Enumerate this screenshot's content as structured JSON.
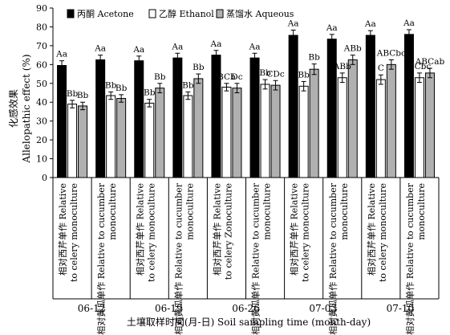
{
  "chart_data": {
    "type": "bar",
    "title": "",
    "ylabel_cn": "化感效果",
    "ylabel": "Allelopathic effect (%)",
    "xlabel": "土壤取样时间(月-日) Soil sampling time (month-day)",
    "ylim": [
      0,
      90
    ],
    "yticks": [
      0,
      10,
      20,
      30,
      40,
      50,
      60,
      70,
      80,
      90
    ],
    "legend_position": "top",
    "series": [
      {
        "name": "丙酮 Acetone",
        "color": "#000000",
        "values": [
          59.5,
          62.5,
          62,
          63.5,
          65,
          63.5,
          75.5,
          73.5,
          75.5,
          76
        ],
        "errors": [
          2.5,
          2.5,
          2.5,
          2.5,
          2.5,
          2.5,
          2.8,
          2.5,
          2.5,
          2.5
        ],
        "sig": [
          "Aa",
          "Aa",
          "Aa",
          "Aa",
          "Aa",
          "Aa",
          "Aa",
          "Aa",
          "Aa",
          "Aa"
        ]
      },
      {
        "name": "乙醇 Ethanol",
        "color": "#ffffff",
        "values": [
          39,
          43.5,
          39.5,
          43.5,
          48,
          49.5,
          48.5,
          53,
          52,
          53
        ],
        "errors": [
          2,
          2,
          2,
          2,
          2,
          2.5,
          2.5,
          2.5,
          2.5,
          2.5
        ],
        "sig": [
          "Bb",
          "Bb",
          "Bb",
          "Bb",
          "BCb",
          "Bb",
          "Bb",
          "ABb",
          "C",
          "BCbc"
        ]
      },
      {
        "name": "蒸馏水 Aqueous",
        "color": "#b0b0b0",
        "values": [
          38,
          42,
          47.5,
          52.5,
          47.5,
          49,
          57.5,
          62.5,
          60,
          55.5
        ],
        "errors": [
          2,
          2,
          2.5,
          2.5,
          2.5,
          2.5,
          2.8,
          2.5,
          2.5,
          2.5
        ],
        "sig": [
          "Bb",
          "Bb",
          "Bb",
          "Bb",
          "Dc",
          "CDc",
          "Bb",
          "ABb",
          "ABCbc",
          "ABCab"
        ]
      }
    ],
    "categories": [
      {
        "cn": "相对西芹单作",
        "en1": "Relative",
        "en2": "to celery monoculture"
      },
      {
        "cn": "相对黄瓜单作",
        "en1": "Relative to cucumber",
        "en2": "monoculture"
      },
      {
        "cn": "相对西芹单作",
        "en1": "Relative",
        "en2": "to celery monoculture"
      },
      {
        "cn": "相对黄瓜单作",
        "en1": "Relative to cucumber",
        "en2": "monoculture"
      },
      {
        "cn": "相对西芹单作",
        "en1": "Relative",
        "en2": "to celery Zonoculture"
      },
      {
        "cn": "相对黄瓜单作",
        "en1": "Relative to cucumber",
        "en2": "monoculture"
      },
      {
        "cn": "相对西芹单作",
        "en1": "Relative",
        "en2": "to celery monoculture"
      },
      {
        "cn": "相对黄瓜单作",
        "en1": "Relative to cucumber",
        "en2": "monoculture"
      },
      {
        "cn": "相对西芹单作",
        "en1": "Relative",
        "en2": "to celery monoculture"
      },
      {
        "cn": "相对黄瓜单作",
        "en1": "Relative to cucumber",
        "en2": "monoculture"
      }
    ],
    "groups": [
      "06-12",
      "06-19",
      "06-26",
      "07-03",
      "07-10"
    ]
  }
}
